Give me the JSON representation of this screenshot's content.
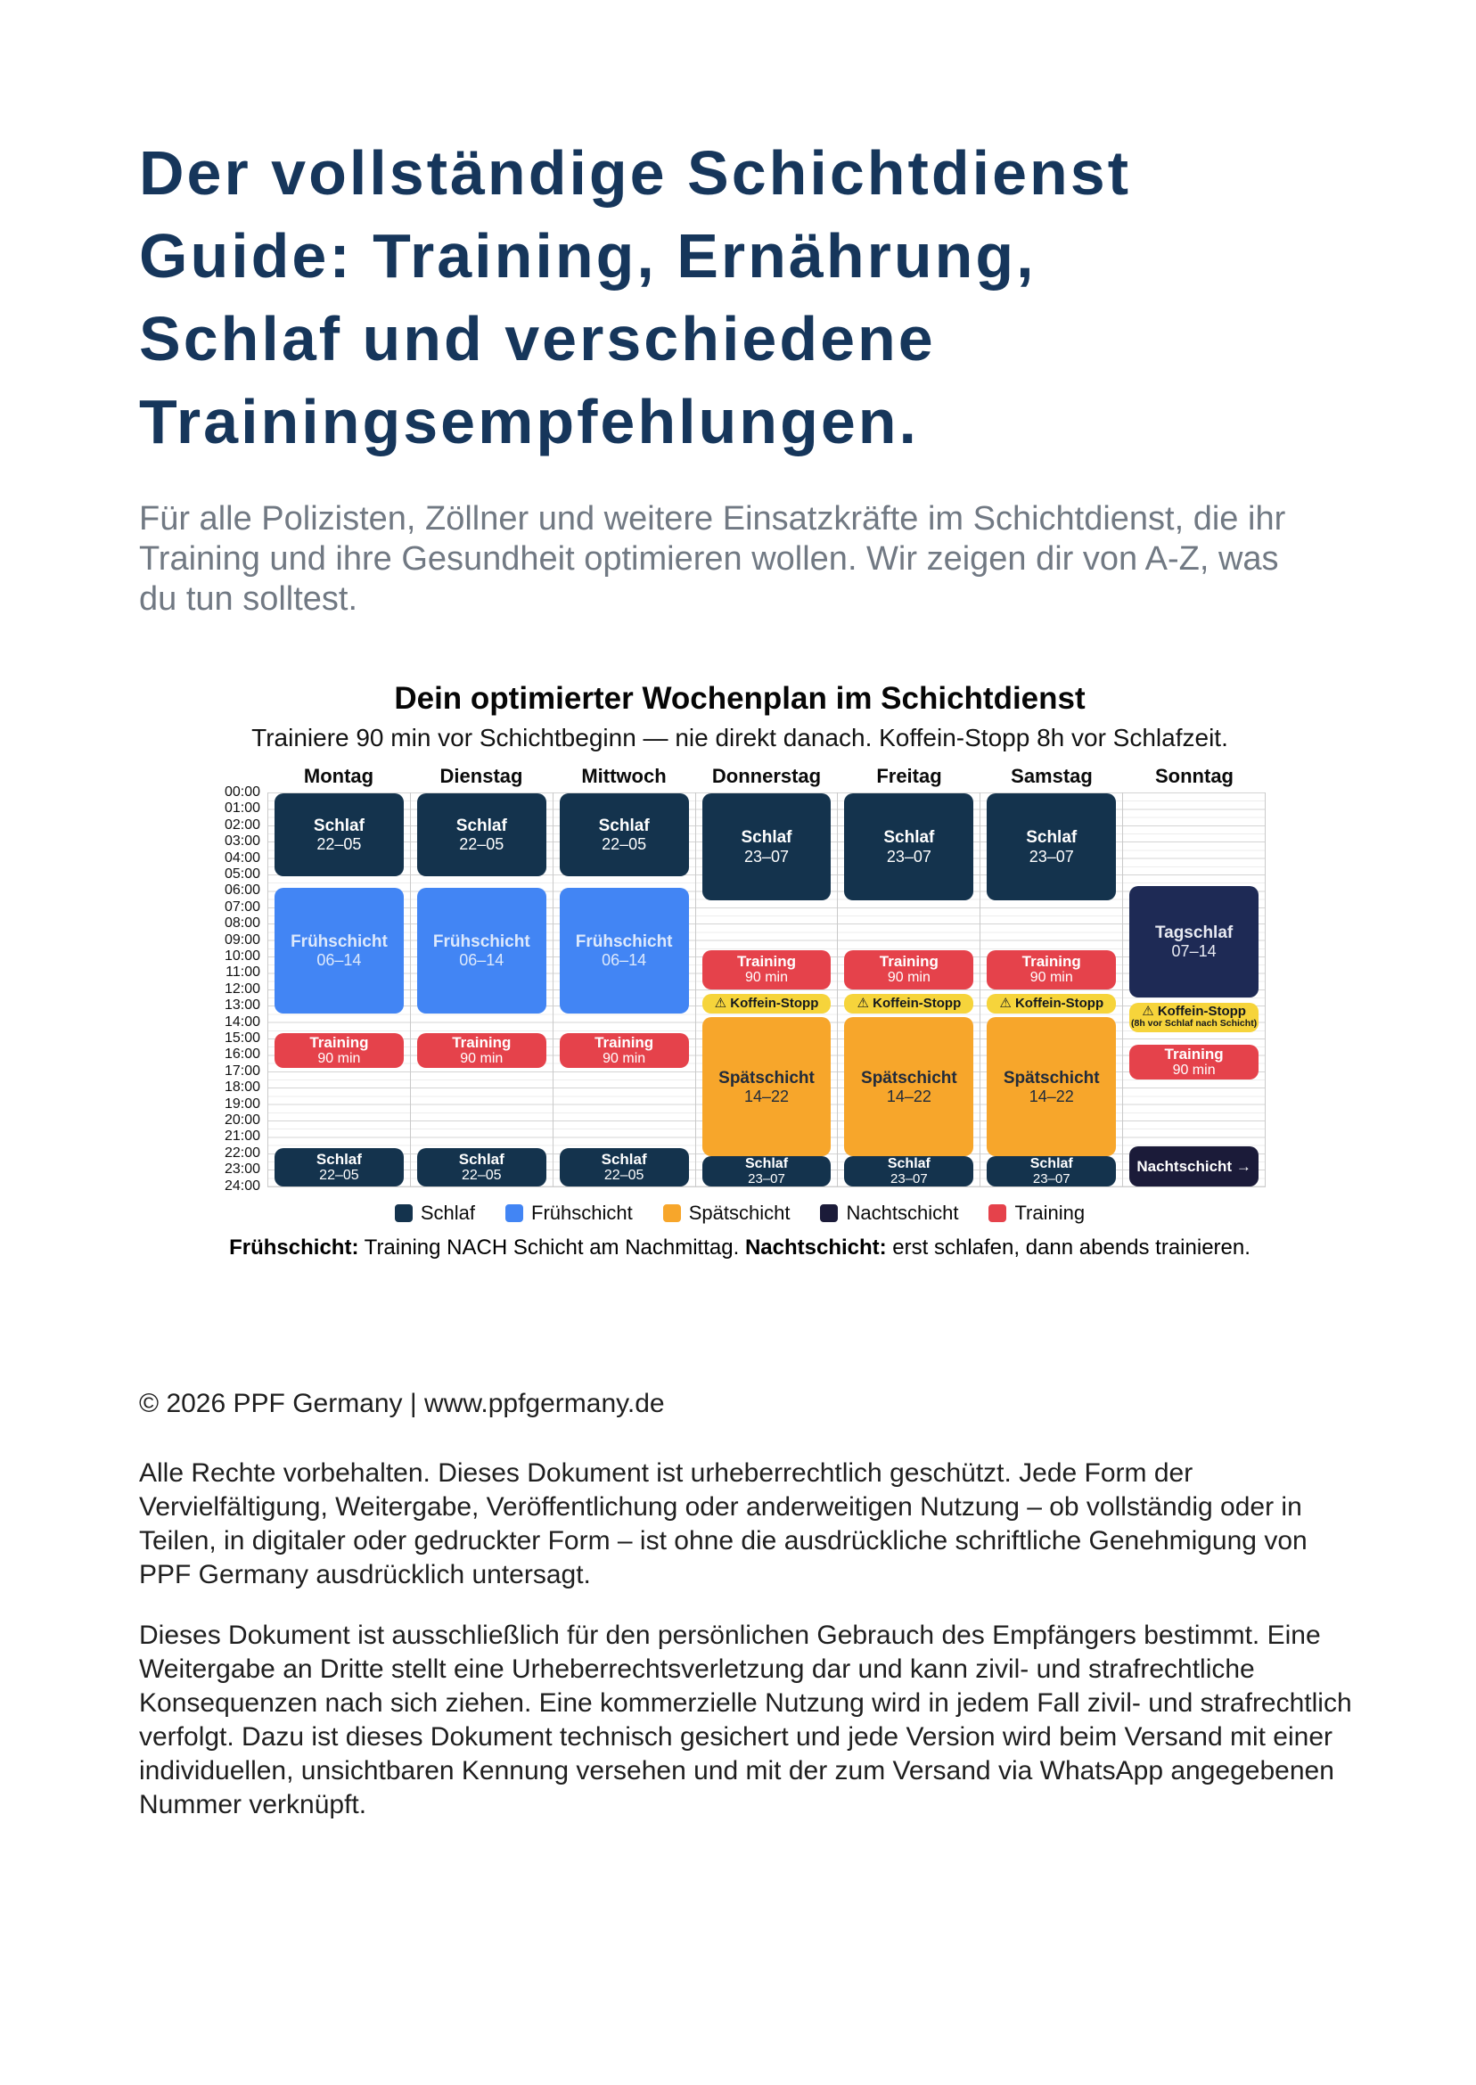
{
  "header": {
    "title": "Der vollständige Schichtdienst Guide: Training, Ernährung, Schlaf und verschiedene Trainingsempfehlungen.",
    "subtitle": "Für alle Polizisten, Zöllner und weitere Einsatzkräfte im Schichtdienst, die ihr Training und ihre Gesundheit optimieren wollen. Wir zeigen dir von A-Z, was du tun solltest."
  },
  "chart": {
    "type": "weekly-schedule",
    "title": "Dein optimierter Wochenplan im Schichtdienst",
    "subtitle": "Trainiere 90 min vor Schichtbeginn — nie direkt danach. Koffein-Stopp 8h vor Schlafzeit.",
    "warning_icon": "⚠",
    "time_labels": [
      "00:00",
      "01:00",
      "02:00",
      "03:00",
      "04:00",
      "05:00",
      "06:00",
      "07:00",
      "08:00",
      "09:00",
      "10:00",
      "11:00",
      "12:00",
      "13:00",
      "14:00",
      "15:00",
      "16:00",
      "17:00",
      "18:00",
      "19:00",
      "20:00",
      "21:00",
      "22:00",
      "23:00",
      "24:00"
    ],
    "colors": {
      "schlaf": "#14334D",
      "fruehschicht": "#4285F4",
      "spaetschicht": "#F7A62B",
      "nachtschicht": "#1B1B39",
      "training": "#E5424B",
      "koffein": "#F6D43B",
      "tagschlaf": "#1E2A55"
    },
    "days": [
      {
        "label": "Montag",
        "blocks": [
          {
            "kind": "schlaf",
            "title": "Schlaf",
            "time": "22–05",
            "start": 0.05,
            "end": 5.1
          },
          {
            "kind": "fruehschicht",
            "title": "Frühschicht",
            "time": "06–14",
            "start": 5.8,
            "end": 13.5
          },
          {
            "kind": "training",
            "title": "Training",
            "time": "90 min",
            "start": 14.7,
            "end": 16.8
          },
          {
            "kind": "schlaf",
            "title": "Schlaf",
            "time": "22–05",
            "start": 21.7,
            "end": 24
          }
        ]
      },
      {
        "label": "Dienstag",
        "blocks": [
          {
            "kind": "schlaf",
            "title": "Schlaf",
            "time": "22–05",
            "start": 0.05,
            "end": 5.1
          },
          {
            "kind": "fruehschicht",
            "title": "Frühschicht",
            "time": "06–14",
            "start": 5.8,
            "end": 13.5
          },
          {
            "kind": "training",
            "title": "Training",
            "time": "90 min",
            "start": 14.7,
            "end": 16.8
          },
          {
            "kind": "schlaf",
            "title": "Schlaf",
            "time": "22–05",
            "start": 21.7,
            "end": 24
          }
        ]
      },
      {
        "label": "Mittwoch",
        "blocks": [
          {
            "kind": "schlaf",
            "title": "Schlaf",
            "time": "22–05",
            "start": 0.05,
            "end": 5.1
          },
          {
            "kind": "fruehschicht",
            "title": "Frühschicht",
            "time": "06–14",
            "start": 5.8,
            "end": 13.5
          },
          {
            "kind": "training",
            "title": "Training",
            "time": "90 min",
            "start": 14.7,
            "end": 16.8
          },
          {
            "kind": "schlaf",
            "title": "Schlaf",
            "time": "22–05",
            "start": 21.7,
            "end": 24
          }
        ]
      },
      {
        "label": "Donnerstag",
        "blocks": [
          {
            "kind": "schlaf",
            "title": "Schlaf",
            "time": "23–07",
            "start": 0.05,
            "end": 6.6
          },
          {
            "kind": "training",
            "title": "Training",
            "time": "90 min",
            "start": 9.6,
            "end": 12.0
          },
          {
            "kind": "koffein",
            "title": "Koffein-Stopp",
            "start": 12.3,
            "end": 13.5
          },
          {
            "kind": "spaetschicht",
            "title": "Spätschicht",
            "time": "14–22",
            "start": 13.7,
            "end": 22.2
          },
          {
            "kind": "schlaf",
            "title": "Schlaf",
            "time": "23–07",
            "start": 22.2,
            "end": 24
          }
        ]
      },
      {
        "label": "Freitag",
        "blocks": [
          {
            "kind": "schlaf",
            "title": "Schlaf",
            "time": "23–07",
            "start": 0.05,
            "end": 6.6
          },
          {
            "kind": "training",
            "title": "Training",
            "time": "90 min",
            "start": 9.6,
            "end": 12.0
          },
          {
            "kind": "koffein",
            "title": "Koffein-Stopp",
            "start": 12.3,
            "end": 13.5
          },
          {
            "kind": "spaetschicht",
            "title": "Spätschicht",
            "time": "14–22",
            "start": 13.7,
            "end": 22.2
          },
          {
            "kind": "schlaf",
            "title": "Schlaf",
            "time": "23–07",
            "start": 22.2,
            "end": 24
          }
        ]
      },
      {
        "label": "Samstag",
        "blocks": [
          {
            "kind": "schlaf",
            "title": "Schlaf",
            "time": "23–07",
            "start": 0.05,
            "end": 6.6
          },
          {
            "kind": "training",
            "title": "Training",
            "time": "90 min",
            "start": 9.6,
            "end": 12.0
          },
          {
            "kind": "koffein",
            "title": "Koffein-Stopp",
            "start": 12.3,
            "end": 13.5
          },
          {
            "kind": "spaetschicht",
            "title": "Spätschicht",
            "time": "14–22",
            "start": 13.7,
            "end": 22.2
          },
          {
            "kind": "schlaf",
            "title": "Schlaf",
            "time": "23–07",
            "start": 22.2,
            "end": 24
          }
        ]
      },
      {
        "label": "Sonntag",
        "blocks": [
          {
            "kind": "tagschlaf",
            "title": "Tagschlaf",
            "time": "07–14",
            "start": 5.7,
            "end": 12.5
          },
          {
            "kind": "koffein",
            "title": "Koffein-Stopp",
            "sub": "(8h vor Schlaf nach Schicht)",
            "start": 12.8,
            "end": 14.6
          },
          {
            "kind": "training",
            "title": "Training",
            "time": "90 min",
            "start": 15.4,
            "end": 17.5
          },
          {
            "kind": "nachtschicht",
            "title": "Nachtschicht →",
            "start": 21.6,
            "end": 24
          }
        ]
      }
    ],
    "legend": [
      {
        "kind": "schlaf",
        "label": "Schlaf"
      },
      {
        "kind": "fruehschicht",
        "label": "Frühschicht"
      },
      {
        "kind": "spaetschicht",
        "label": "Spätschicht"
      },
      {
        "kind": "nachtschicht",
        "label": "Nachtschicht"
      },
      {
        "kind": "training",
        "label": "Training"
      }
    ],
    "footnote": {
      "b1": "Frühschicht:",
      "t1": " Training NACH Schicht am Nachmittag. ",
      "b2": "Nachtschicht:",
      "t2": " erst schlafen, dann abends trainieren."
    }
  },
  "footer": {
    "copyright": "© 2026 PPF Germany | www.ppfgermany.de",
    "p1": "Alle Rechte vorbehalten. Dieses Dokument ist urheberrechtlich geschützt. Jede Form der Vervielfältigung, Weitergabe, Veröffentlichung oder anderweitigen Nutzung – ob vollständig oder in Teilen, in digitaler oder gedruckter Form – ist ohne die ausdrückliche schriftliche Genehmigung von PPF Germany ausdrücklich untersagt.",
    "p2": "Dieses Dokument ist ausschließlich für den persönlichen Gebrauch des Empfängers bestimmt. Eine Weitergabe an Dritte stellt eine Urheberrechtsverletzung dar und kann zivil- und strafrechtliche Konsequenzen nach sich ziehen. Eine kommerzielle Nutzung wird in jedem Fall zivil- und strafrechtlich verfolgt. Dazu ist dieses Dokument technisch gesichert und jede Version wird beim Versand mit einer individuellen, unsichtbaren Kennung versehen und mit der zum Versand via WhatsApp angegebenen Nummer verknüpft."
  }
}
